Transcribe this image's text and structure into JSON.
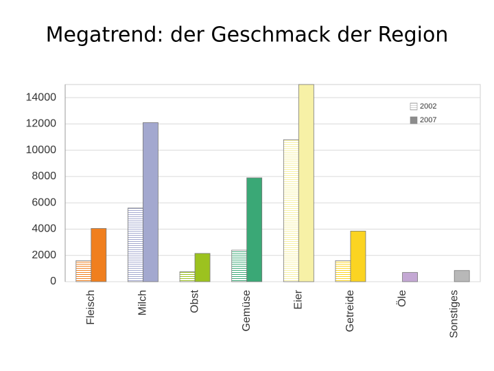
{
  "chart_data": {
    "type": "bar",
    "title": "Megatrend: der Geschmack der Region",
    "categories": [
      "Fleisch",
      "Milch",
      "Obst",
      "Gemüse",
      "Eier",
      "Getreide",
      "Öle",
      "Sonstiges"
    ],
    "category_colors": [
      "#f07f1e",
      "#a3a8cf",
      "#9cc21f",
      "#3aa876",
      "#f7f1a6",
      "#fbd422",
      "#c4a8d4",
      "#b8b8b8"
    ],
    "series": [
      {
        "name": "2002",
        "color": "#d4d4d4",
        "values": [
          1600,
          5600,
          750,
          2400,
          10800,
          1600,
          null,
          null
        ]
      },
      {
        "name": "2007",
        "color": "#8c8c8c",
        "values": [
          4050,
          12100,
          2150,
          7900,
          15000,
          3850,
          700,
          850
        ]
      }
    ],
    "ylim": [
      0,
      15000
    ],
    "yticks": [
      0,
      2000,
      4000,
      6000,
      8000,
      10000,
      12000,
      14000
    ],
    "grid": true,
    "legend": "top-right"
  }
}
